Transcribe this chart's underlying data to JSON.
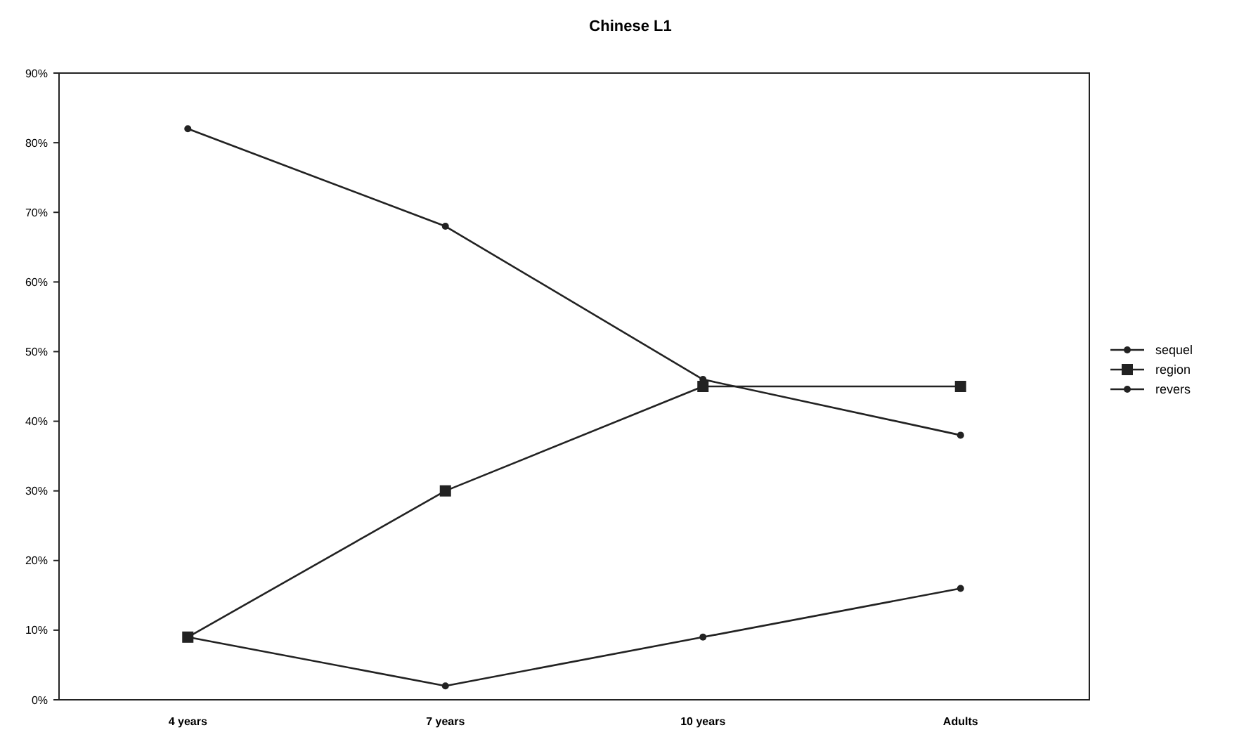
{
  "chart_data": {
    "type": "line",
    "title": "Chinese L1",
    "categories": [
      "4 years",
      "7 years",
      "10 years",
      "Adults"
    ],
    "series": [
      {
        "name": "sequel",
        "color": "#222222",
        "values": [
          82,
          68,
          46,
          38
        ],
        "marker": "circle"
      },
      {
        "name": "region",
        "color": "#222222",
        "values": [
          9,
          30,
          45,
          45
        ],
        "marker": "square"
      },
      {
        "name": "revers",
        "color": "#222222",
        "values": [
          9,
          2,
          9,
          16
        ],
        "marker": "circle"
      }
    ],
    "ylim": [
      0,
      90
    ],
    "yticks": [
      {
        "value": 0,
        "label": "0%"
      },
      {
        "value": 10,
        "label": "10%"
      },
      {
        "value": 20,
        "label": "20%"
      },
      {
        "value": 30,
        "label": "30%"
      },
      {
        "value": 40,
        "label": "40%"
      },
      {
        "value": 50,
        "label": "50%"
      },
      {
        "value": 60,
        "label": "60%"
      },
      {
        "value": 70,
        "label": "70%"
      },
      {
        "value": 80,
        "label": "80%"
      },
      {
        "value": 90,
        "label": "90%"
      }
    ],
    "grid": false,
    "legend": "right",
    "line_style": "solid"
  }
}
